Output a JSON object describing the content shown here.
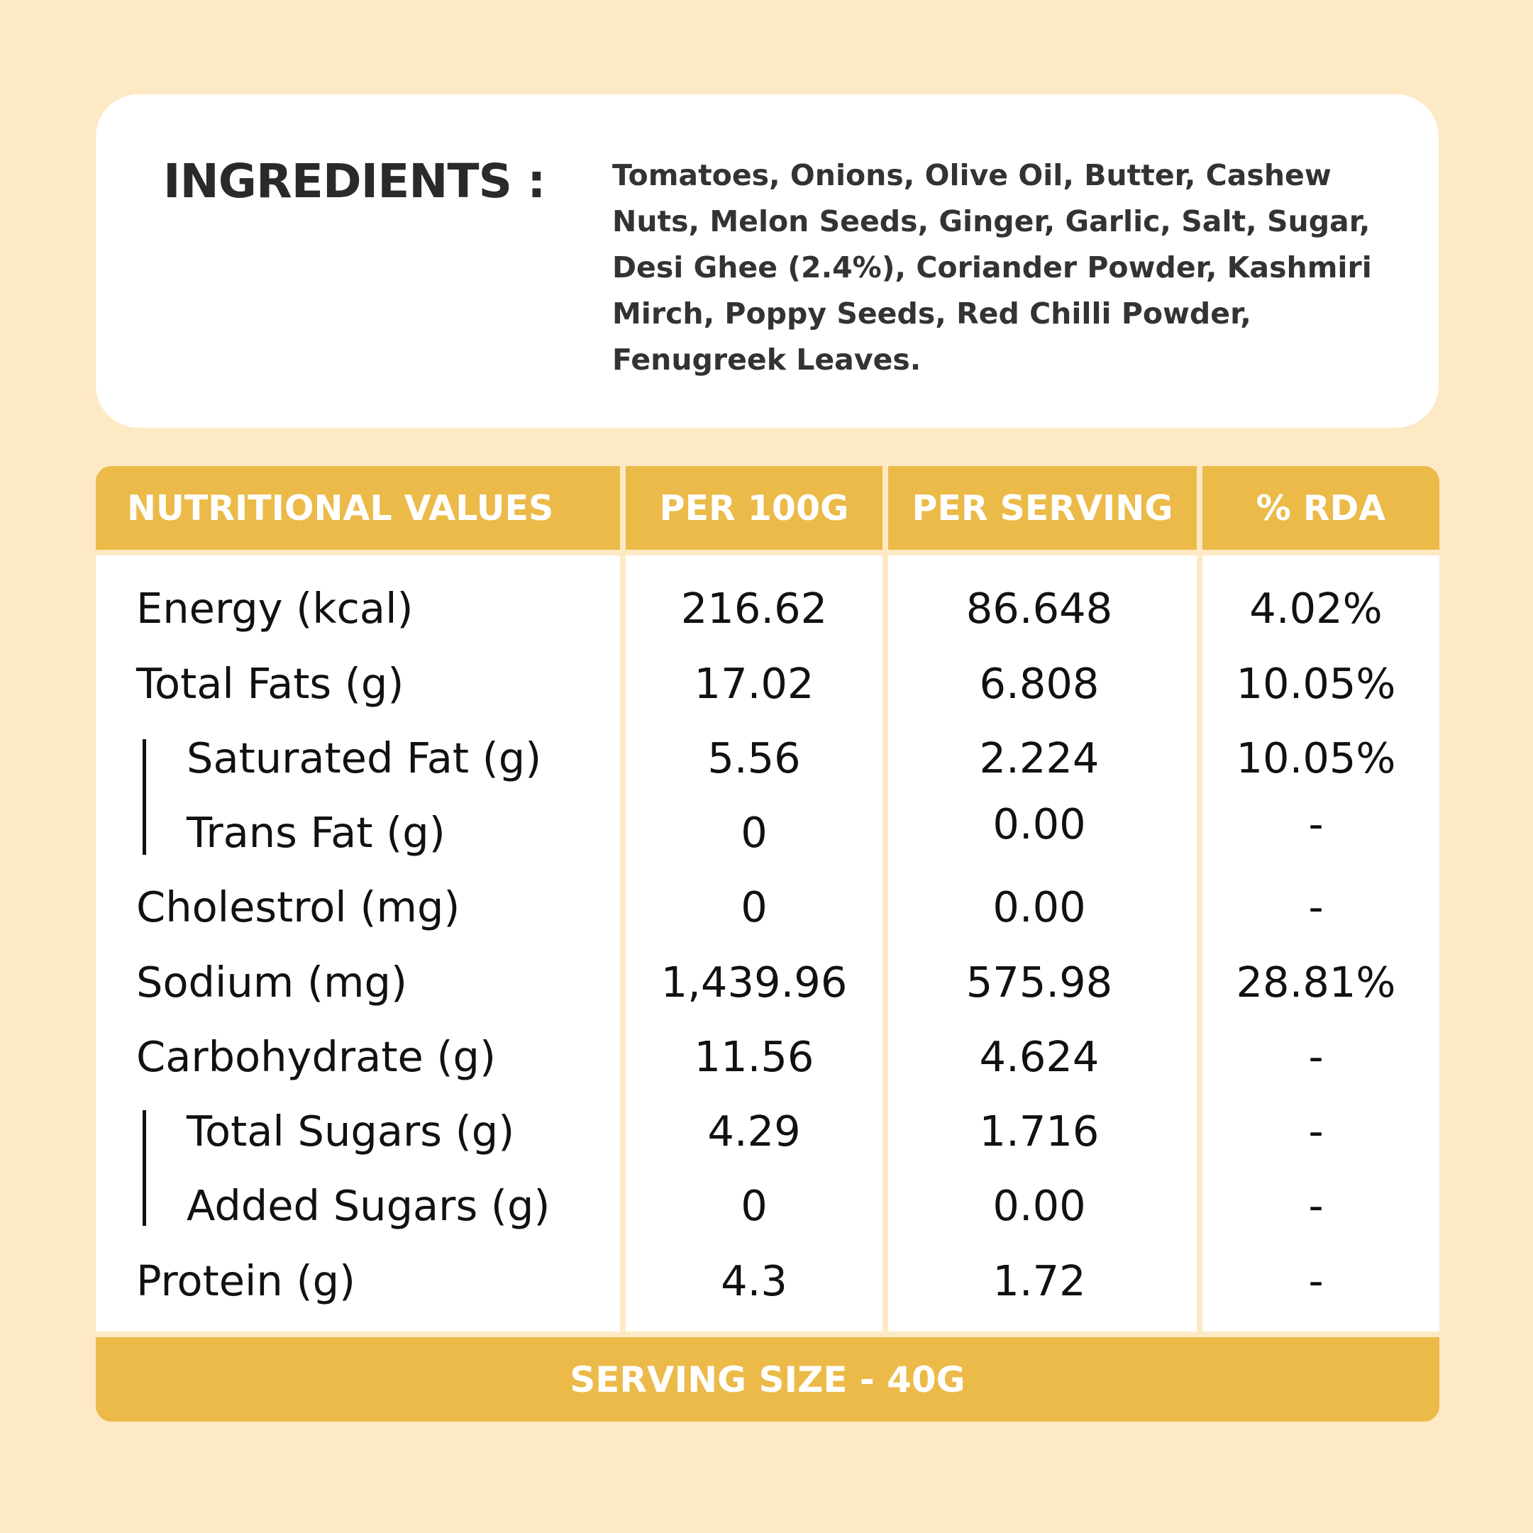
{
  "ingredients": {
    "title": "INGREDIENTS :",
    "lines": [
      "Tomatoes, Onions, Olive Oil, Butter, Cashew",
      "Nuts, Melon Seeds, Ginger, Garlic, Salt, Sugar,",
      "Desi Ghee (2.4%), Coriander Powder, Kashmiri",
      "Mirch, Poppy Seeds, Red Chilli Powder,",
      "Fenugreek Leaves."
    ]
  },
  "table": {
    "headers": [
      "NUTRITIONAL VALUES",
      "PER 100G",
      "PER SERVING",
      "% RDA"
    ],
    "rows": [
      {
        "label": "Energy (kcal)",
        "per100": "216.62",
        "serving": "86.648",
        "rda": "4.02%"
      },
      {
        "label": "Total Fats (g)",
        "per100": "17.02",
        "serving": "6.808",
        "rda": "10.05%"
      },
      {
        "label": "Saturated Fat (g)",
        "per100": "5.56",
        "serving": "2.224",
        "rda": "10.05%"
      },
      {
        "label": "Trans Fat (g)",
        "per100": "0",
        "serving": "0.00",
        "rda": "-"
      },
      {
        "label": "Cholestrol (mg)",
        "per100": "0",
        "serving": "0.00",
        "rda": "-"
      },
      {
        "label": "Sodium (mg)",
        "per100": "1,439.96",
        "serving": "575.98",
        "rda": "28.81%"
      },
      {
        "label": "Carbohydrate (g)",
        "per100": "11.56",
        "serving": "4.624",
        "rda": "-"
      },
      {
        "label": "Total Sugars (g)",
        "per100": "4.29",
        "serving": "1.716",
        "rda": "-"
      },
      {
        "label": "Added Sugars  (g)",
        "per100": "0",
        "serving": "0.00",
        "rda": "-"
      },
      {
        "label": "Protein (g)",
        "per100": "4.3",
        "serving": "1.72",
        "rda": "-"
      }
    ],
    "footer": "SERVING SIZE - 40G"
  },
  "colors": {
    "background": "#fde9c4",
    "accent": "#ebba48",
    "card": "#ffffff",
    "text": "#111111"
  }
}
